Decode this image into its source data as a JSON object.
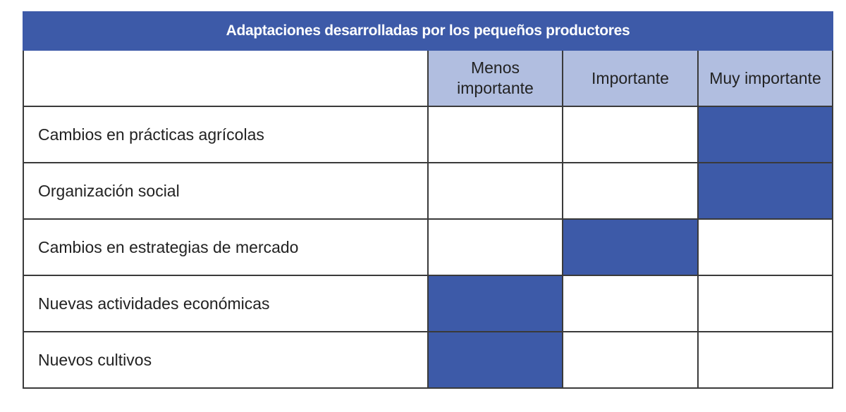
{
  "title": "Adaptaciones desarrolladas por los pequeños productores",
  "columns": [
    "Menos importante",
    "Importante",
    "Muy importante"
  ],
  "colors": {
    "selected": "#3d5aa8",
    "header": "#b1bee0",
    "title_bar": "#3d5aa8"
  },
  "rows": [
    {
      "label": "Cambios en prácticas agrícolas",
      "importance": "Muy importante"
    },
    {
      "label": "Organización social",
      "importance": "Muy importante"
    },
    {
      "label": "Cambios en estrategias de mercado",
      "importance": "Importante"
    },
    {
      "label": "Nuevas actividades económicas",
      "importance": "Menos importante"
    },
    {
      "label": "Nuevos cultivos",
      "importance": "Menos importante"
    }
  ]
}
